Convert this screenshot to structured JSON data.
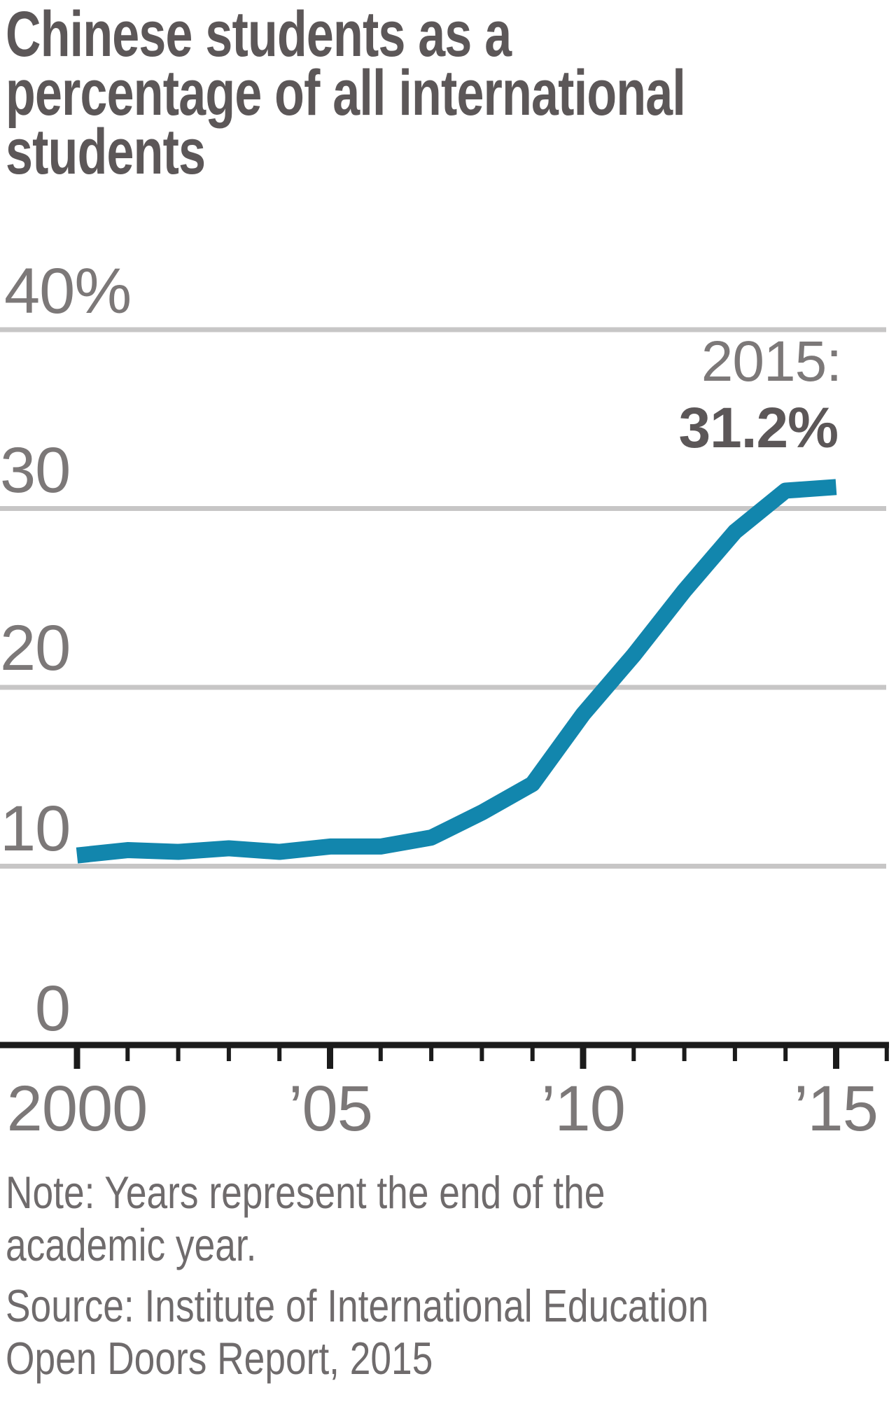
{
  "title": {
    "line1": "Chinese students as a",
    "line2": "percentage of all international",
    "line3": "students"
  },
  "annotation": {
    "year_label": "2015:",
    "value_label": "31.2%"
  },
  "note": {
    "line1": "Note: Years represent the end of the",
    "line2": "academic year."
  },
  "source": {
    "line1": "Source: Institute of International Education",
    "line2": "Open Doors Report, 2015"
  },
  "colors": {
    "line": "#1286ad",
    "grid": "#c7c6c6",
    "axis": "#1b1b1b",
    "title_text": "#5c5758",
    "label_text": "#7c7878",
    "note_text": "#6f6b6c"
  },
  "chart_data": {
    "type": "line",
    "title": "Chinese students as a percentage of all international students",
    "x": [
      2000,
      2001,
      2002,
      2003,
      2004,
      2005,
      2006,
      2007,
      2008,
      2009,
      2010,
      2011,
      2012,
      2013,
      2014,
      2015
    ],
    "values": [
      10.6,
      10.9,
      10.8,
      11.0,
      10.8,
      11.1,
      11.1,
      11.6,
      13.0,
      14.6,
      18.5,
      21.8,
      25.4,
      28.7,
      31.0,
      31.2
    ],
    "series_name": "Chinese students share of international students (%)",
    "xlabel": "",
    "ylabel": "",
    "xlim": [
      2000,
      2016
    ],
    "ylim": [
      0,
      40
    ],
    "ytick_values": [
      0,
      10,
      20,
      30,
      40
    ],
    "ytick_labels": [
      "0",
      "10",
      "20",
      "30",
      "40%"
    ],
    "xtick_years": [
      2000,
      2005,
      2010,
      2015
    ],
    "xtick_labels": [
      "2000",
      "’05",
      "’10",
      "’15"
    ],
    "minor_xticks_every_year": true,
    "grid": "horizontal",
    "legend": "none",
    "annotation": "2015: 31.2%"
  }
}
